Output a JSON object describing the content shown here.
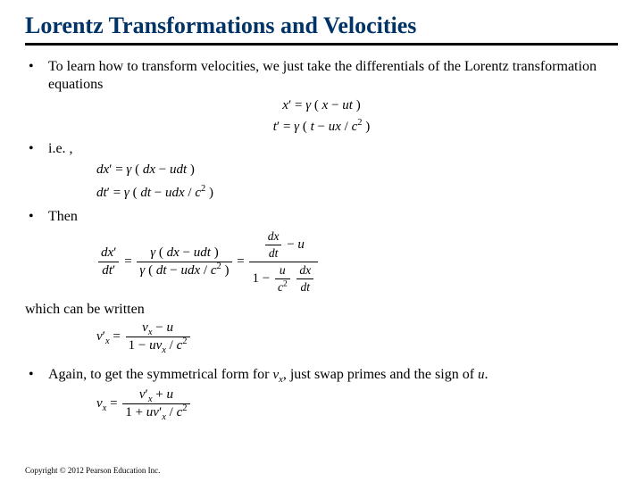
{
  "title": "Lorentz Transformations and Velocities",
  "bullets": {
    "b1": "To learn how to transform velocities, we just take the differentials of the Lorentz transformation equations",
    "b2": "i.e. ,",
    "b3": "Then",
    "b4_pre": "Again, to get the symmetrical form for ",
    "b4_var": "v",
    "b4_sub": "x",
    "b4_mid": ", just swap primes and the sign of ",
    "b4_var2": "u",
    "b4_end": "."
  },
  "sub": "which can be written",
  "equations": {
    "e1": "x′ = γ ( x − ut )",
    "e2": "t′ = γ ( t − ux / c² )",
    "e3": "dx′ = γ ( dx − udt )",
    "e4": "dt′ = γ ( dt − udx / c² )",
    "e5_lhs": "dx′ / dt′",
    "e5_mid_num": "γ ( dx − udt )",
    "e5_mid_den": "γ ( dt − udx / c² )",
    "e5_rhs_num": "dx/dt − u",
    "e5_rhs_den_a": "1 − ",
    "e5_rhs_den_b": "(u/c²)(dx/dt)",
    "e6_lhs": "v′ₓ",
    "e6_num": "vₓ − u",
    "e6_den": "1 − uvₓ / c²",
    "e7_lhs": "vₓ",
    "e7_num": "v′ₓ + u",
    "e7_den": "1 + uv′ₓ / c²"
  },
  "colors": {
    "title": "#003366",
    "rule": "#000000",
    "text": "#000000",
    "background": "#ffffff"
  },
  "typography": {
    "title_fontsize": 26,
    "body_fontsize": 16,
    "eq_fontsize": 15,
    "copyright_fontsize": 9,
    "font_family": "Times New Roman"
  },
  "copyright": "Copyright © 2012 Pearson Education Inc."
}
